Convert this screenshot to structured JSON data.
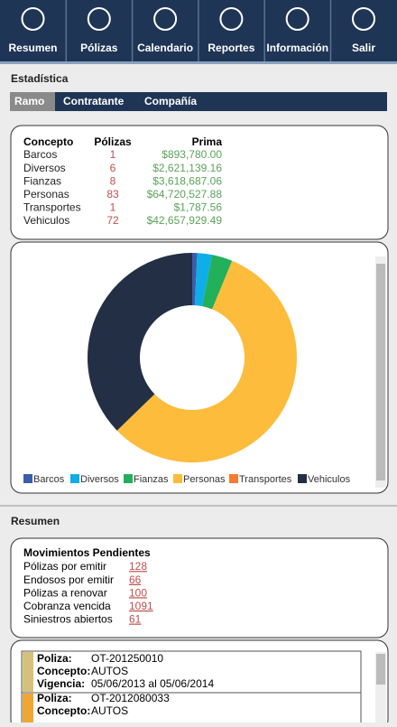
{
  "nav": [
    "Resumen",
    "Pólizas",
    "Calendario",
    "Reportes",
    "Información",
    "Salir"
  ],
  "statistics": {
    "title": "Estadística",
    "tabs": [
      "Ramo",
      "Contratante",
      "Compañía"
    ],
    "table": {
      "headers": [
        "Concepto",
        "Pólizas",
        "Prima"
      ],
      "rows": [
        [
          "Barcos",
          1,
          "$893,780.00"
        ],
        [
          "Diversos",
          6,
          "$2,621,139.16"
        ],
        [
          "Fianzas",
          8,
          "$3,618,687.06"
        ],
        [
          "Personas",
          83,
          "$64,720,527.88"
        ],
        [
          "Transportes",
          1,
          "$1,787.56"
        ],
        [
          "Vehiculos",
          72,
          "$42,657,929.49"
        ]
      ]
    }
  },
  "chart_data": {
    "type": "donut",
    "categories": [
      "Barcos",
      "Diversos",
      "Fianzas",
      "Personas",
      "Transportes",
      "Vehiculos"
    ],
    "values": [
      893780.0,
      2621139.16,
      3618687.06,
      64720527.88,
      1787.56,
      42657929.49
    ],
    "colors": [
      "#3a5ea8",
      "#0eaee8",
      "#22b05a",
      "#fdbc3c",
      "#f47b30",
      "#222f45"
    ],
    "legend": "bottom"
  },
  "summary": {
    "title": "Resumen",
    "pending": {
      "title": "Movimientos Pendientes",
      "rows": [
        [
          "Pólizas por emitir",
          128
        ],
        [
          "Endosos por emitir",
          66
        ],
        [
          "Pólizas a renovar",
          100
        ],
        [
          "Cobranza vencida",
          1091
        ],
        [
          "Siniestros abiertos",
          61
        ]
      ]
    },
    "policies": [
      [
        [
          "Poliza:",
          "OT-201250010"
        ],
        [
          "Concepto:",
          "AUTOS"
        ],
        [
          "Vigencia:",
          "05/06/2013 al 05/06/2014"
        ]
      ],
      [
        [
          "Poliza:",
          "OT-2012080033"
        ],
        [
          "Concepto:",
          "AUTOS"
        ]
      ]
    ]
  }
}
